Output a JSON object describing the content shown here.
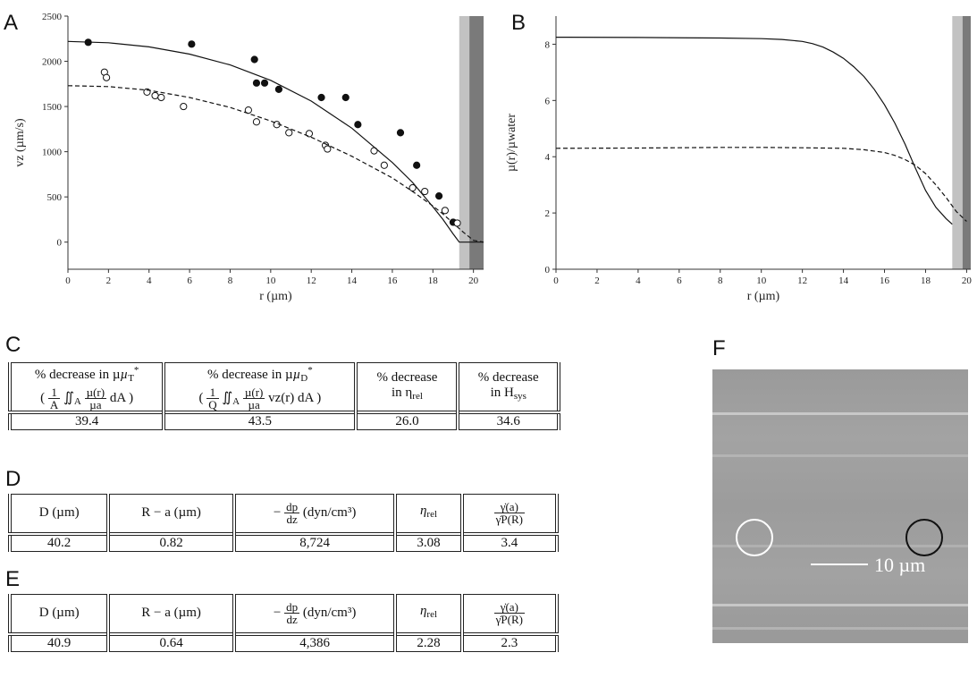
{
  "panels": {
    "A": "A",
    "B": "B",
    "C": "C",
    "D": "D",
    "E": "E",
    "F": "F"
  },
  "chart_data": [
    {
      "type": "scatter",
      "panel": "A",
      "xlabel": "r (µm)",
      "ylabel": "vz (µm/s)",
      "xlim": [
        0,
        20.5
      ],
      "ylim": [
        -300,
        2500
      ],
      "xticks": [
        0,
        2,
        4,
        6,
        8,
        10,
        12,
        14,
        16,
        18,
        20
      ],
      "yticks": [
        0,
        500,
        1000,
        1500,
        2000,
        2500
      ],
      "wall_bands": [
        {
          "from": 19.3,
          "to": 19.8,
          "color": "#c2c2c2"
        },
        {
          "from": 19.8,
          "to": 20.5,
          "color": "#7a7a7a"
        }
      ],
      "series": [
        {
          "style": "filled-points",
          "x": [
            1.0,
            6.1,
            9.2,
            9.3,
            9.7,
            10.4,
            12.5,
            13.7,
            14.3,
            16.4,
            17.2,
            18.3,
            19.0
          ],
          "y": [
            2210,
            2190,
            2020,
            1760,
            1760,
            1690,
            1600,
            1600,
            1300,
            1210,
            850,
            510,
            220
          ]
        },
        {
          "style": "open-points",
          "x": [
            1.8,
            1.9,
            3.9,
            4.3,
            4.6,
            5.7,
            8.9,
            9.3,
            10.3,
            10.9,
            11.9,
            12.7,
            12.8,
            15.1,
            15.6,
            17.0,
            17.6,
            18.6,
            19.2
          ],
          "y": [
            1880,
            1820,
            1660,
            1620,
            1600,
            1500,
            1460,
            1330,
            1300,
            1210,
            1200,
            1070,
            1030,
            1010,
            850,
            600,
            560,
            350,
            210
          ]
        },
        {
          "style": "solid-line",
          "x": [
            0,
            2,
            4,
            6,
            8,
            10,
            12,
            14,
            16,
            17,
            18,
            18.5,
            19.0,
            19.3,
            20.5
          ],
          "y": [
            2220,
            2205,
            2160,
            2080,
            1960,
            1790,
            1560,
            1260,
            880,
            660,
            390,
            250,
            90,
            0,
            0
          ]
        },
        {
          "style": "dashed-line",
          "x": [
            0,
            2,
            4,
            6,
            8,
            10,
            12,
            14,
            16,
            17,
            18,
            18.5,
            19.0,
            19.5,
            20.0,
            20.5
          ],
          "y": [
            1730,
            1720,
            1680,
            1600,
            1490,
            1340,
            1160,
            950,
            710,
            560,
            400,
            310,
            210,
            110,
            20,
            0
          ]
        }
      ]
    },
    {
      "type": "line",
      "panel": "B",
      "xlabel": "r (µm)",
      "ylabel": "µ(r)/µwater",
      "xlim": [
        0,
        20.2
      ],
      "ylim": [
        0,
        9
      ],
      "xticks": [
        0,
        2,
        4,
        6,
        8,
        10,
        12,
        14,
        16,
        18,
        20
      ],
      "yticks": [
        0,
        2,
        4,
        6,
        8
      ],
      "wall_bands": [
        {
          "from": 19.3,
          "to": 19.8,
          "color": "#c2c2c2"
        },
        {
          "from": 19.8,
          "to": 20.2,
          "color": "#7a7a7a"
        }
      ],
      "series": [
        {
          "style": "solid-line",
          "x": [
            0,
            4,
            8,
            10,
            11,
            12,
            12.5,
            13,
            13.5,
            14,
            14.5,
            15,
            15.5,
            16,
            16.5,
            17,
            17.5,
            18,
            18.5,
            19,
            19.3
          ],
          "y": [
            8.25,
            8.24,
            8.22,
            8.2,
            8.17,
            8.1,
            8.02,
            7.9,
            7.72,
            7.5,
            7.2,
            6.85,
            6.4,
            5.85,
            5.2,
            4.45,
            3.6,
            2.8,
            2.2,
            1.8,
            1.6
          ]
        },
        {
          "style": "dashed-line",
          "x": [
            0,
            4,
            8,
            10,
            12,
            14,
            15,
            16,
            16.5,
            17,
            17.5,
            18,
            18.5,
            19,
            19.5,
            20
          ],
          "y": [
            4.3,
            4.31,
            4.33,
            4.33,
            4.32,
            4.3,
            4.25,
            4.15,
            4.05,
            3.9,
            3.7,
            3.4,
            3.0,
            2.55,
            2.05,
            1.7
          ]
        }
      ]
    }
  ],
  "table_c": {
    "headers": [
      {
        "line1": "% decrease in µ",
        "sym_sub": "T",
        "sym_sup": "*",
        "line2a": "(",
        "line2_num1": "1",
        "line2_den1": "A",
        "line2b": "∬",
        "line2_sub": "A",
        "line2_num2": "µ(r)",
        "line2_den2": "µa",
        "line2c": "dA )"
      },
      {
        "line1": "% decrease in µ",
        "sym_sub": "D",
        "sym_sup": "*",
        "line2a": "(",
        "line2_num1": "1",
        "line2_den1": "Q",
        "line2b": "∬",
        "line2_sub": "A",
        "line2_num2": "µ(r)",
        "line2_den2": "µa",
        "line2c": "vz(r) dA )"
      },
      {
        "line1": "% decrease",
        "line2": "in η",
        "line2_sub": "rel"
      },
      {
        "line1": "% decrease",
        "line2": "in H",
        "line2_sub": "sys"
      }
    ],
    "values": [
      "39.4",
      "43.5",
      "26.0",
      "34.6"
    ]
  },
  "table_d": {
    "headers": [
      "D (µm)",
      "R − a (µm)",
      "− dp/dz (dyn/cm³)",
      "ηrel",
      "γ̇(a) / γ̇P(R)"
    ],
    "header_parts": {
      "h3_pre": "−",
      "h3_num": "dp",
      "h3_den": "dz",
      "h3_post": "(dyn/cm³)",
      "h4": "η",
      "h4_sub": "rel",
      "h5_num": "γ̇(a)",
      "h5_den": "γ̇P(R)"
    },
    "values": [
      "40.2",
      "0.82",
      "8,724",
      "3.08",
      "3.4"
    ]
  },
  "table_e": {
    "headers": [
      "D (µm)",
      "R − a (µm)",
      "− dp/dz (dyn/cm³)",
      "ηrel",
      "γ̇(a) / γ̇P(R)"
    ],
    "header_parts": {
      "h3_pre": "−",
      "h3_num": "dp",
      "h3_den": "dz",
      "h3_post": "(dyn/cm³)",
      "h4": "η",
      "h4_sub": "rel",
      "h5_num": "γ̇(a)",
      "h5_den": "γ̇P(R)"
    },
    "values": [
      "40.9",
      "0.64",
      "4,386",
      "2.28",
      "2.3"
    ]
  },
  "micrograph": {
    "scale_label": "10 µm",
    "circle_left_color": "#ffffff",
    "circle_right_color": "#111111"
  }
}
